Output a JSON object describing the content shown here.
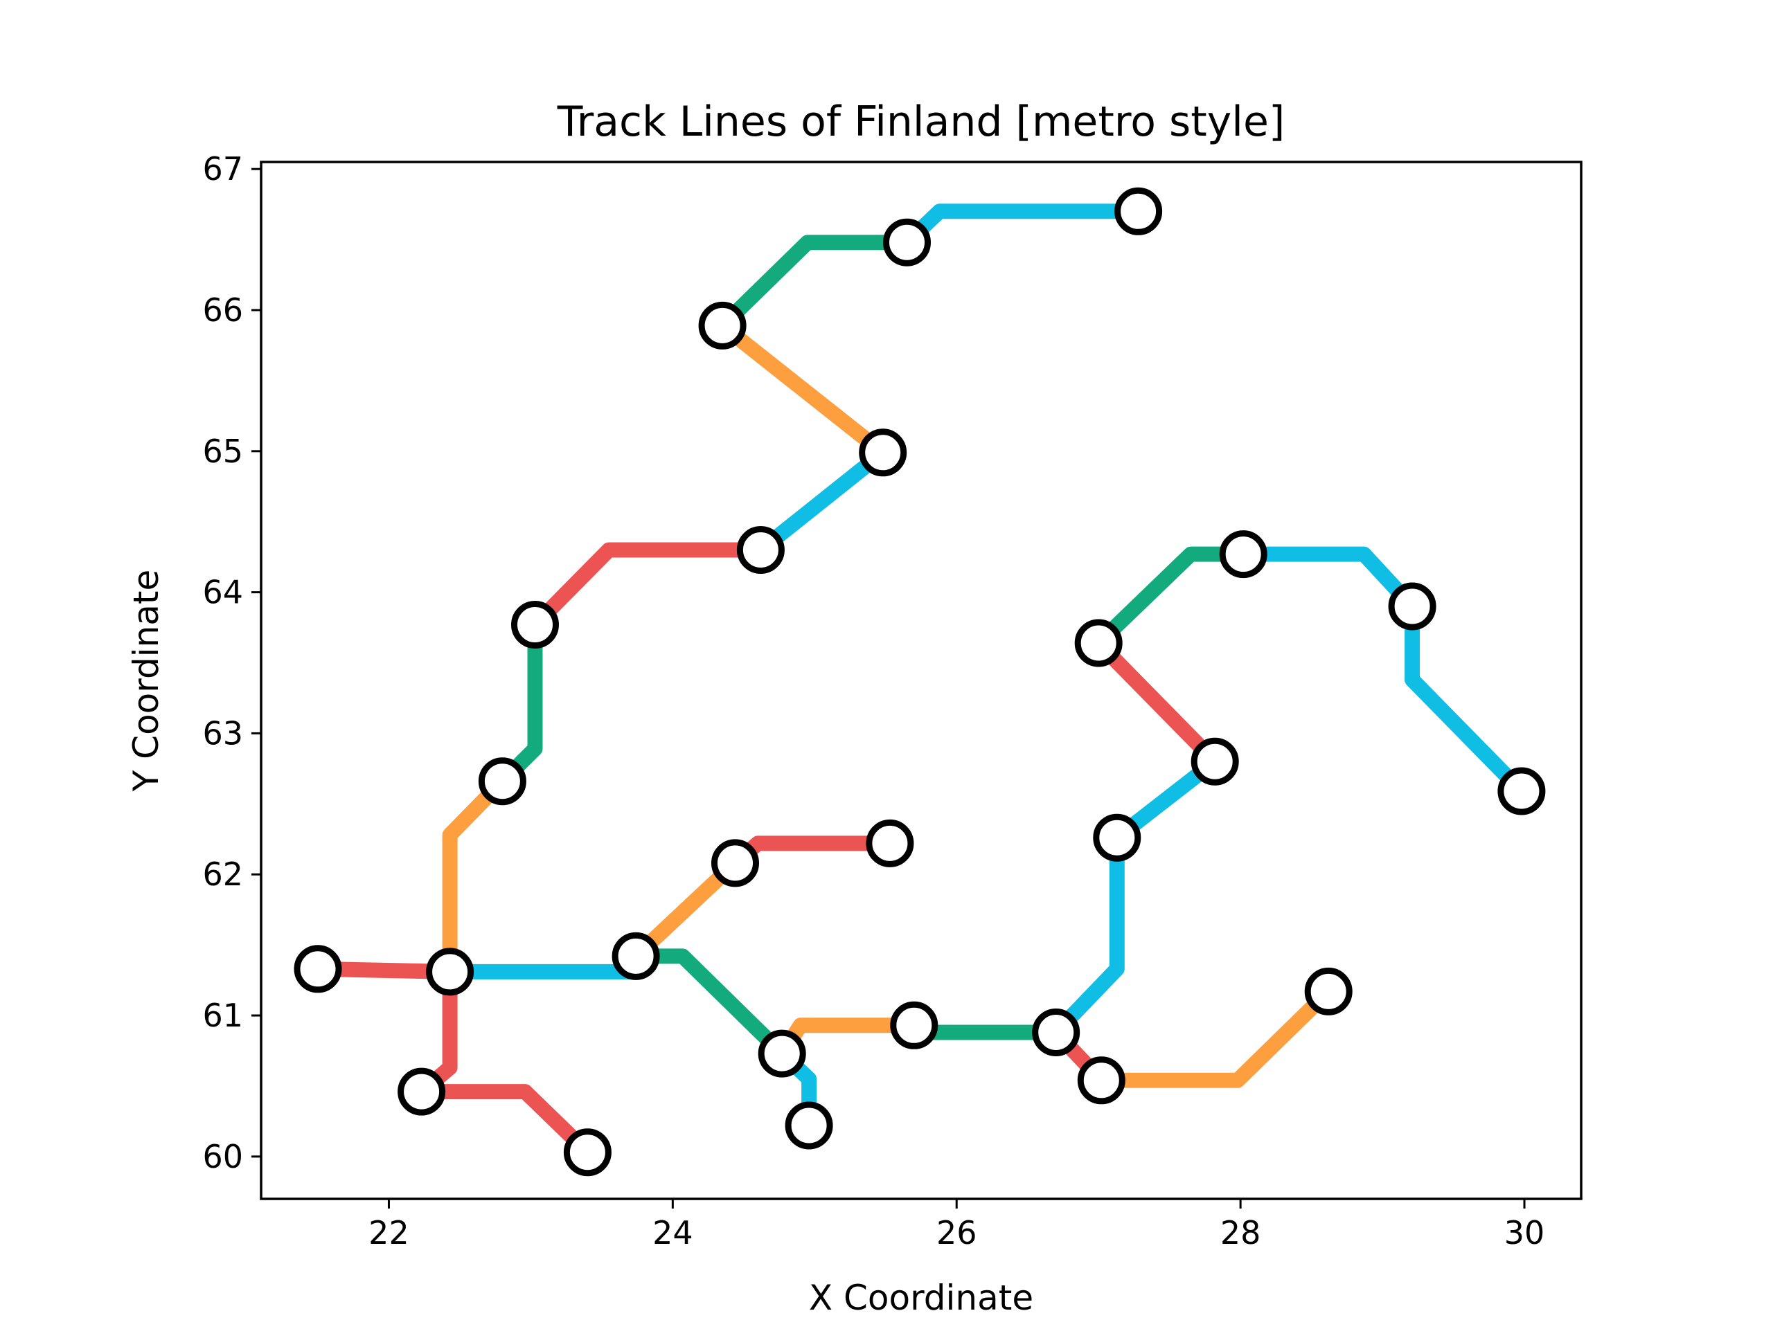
{
  "chart_data": {
    "type": "line",
    "title": "Track Lines of Finland [metro style]",
    "xlabel": "X Coordinate",
    "ylabel": "Y Coordinate",
    "xlim": [
      21.1,
      30.4
    ],
    "ylim": [
      59.7,
      67.05
    ],
    "xticks": [
      22,
      24,
      26,
      28,
      30
    ],
    "yticks": [
      60,
      61,
      62,
      63,
      64,
      65,
      66,
      67
    ],
    "grid": false,
    "legend": "none",
    "colors": {
      "red": "#ec5353",
      "orange": "#fd9e3f",
      "blue": "#10bde5",
      "green": "#13ab7e"
    },
    "stations": [
      {
        "x": 21.5,
        "y": 61.33
      },
      {
        "x": 22.43,
        "y": 61.31
      },
      {
        "x": 22.23,
        "y": 60.46
      },
      {
        "x": 23.4,
        "y": 60.03
      },
      {
        "x": 22.8,
        "y": 62.66
      },
      {
        "x": 23.03,
        "y": 63.77
      },
      {
        "x": 24.62,
        "y": 64.3
      },
      {
        "x": 25.48,
        "y": 64.99
      },
      {
        "x": 24.35,
        "y": 65.89
      },
      {
        "x": 25.65,
        "y": 66.48
      },
      {
        "x": 27.28,
        "y": 66.7
      },
      {
        "x": 23.74,
        "y": 61.42
      },
      {
        "x": 24.44,
        "y": 62.08
      },
      {
        "x": 25.53,
        "y": 62.22
      },
      {
        "x": 24.77,
        "y": 60.73
      },
      {
        "x": 24.96,
        "y": 60.22
      },
      {
        "x": 25.7,
        "y": 60.93
      },
      {
        "x": 26.7,
        "y": 60.88
      },
      {
        "x": 27.02,
        "y": 60.54
      },
      {
        "x": 28.62,
        "y": 61.17
      },
      {
        "x": 27.13,
        "y": 62.26
      },
      {
        "x": 27.82,
        "y": 62.8
      },
      {
        "x": 27.0,
        "y": 63.64
      },
      {
        "x": 28.02,
        "y": 64.27
      },
      {
        "x": 29.21,
        "y": 63.9
      },
      {
        "x": 29.98,
        "y": 62.59
      }
    ],
    "segments": [
      {
        "color": "red",
        "points": [
          [
            21.5,
            61.33
          ],
          [
            22.43,
            61.31
          ]
        ]
      },
      {
        "color": "blue",
        "points": [
          [
            22.43,
            61.31
          ],
          [
            23.74,
            61.31
          ],
          [
            23.74,
            61.42
          ]
        ]
      },
      {
        "color": "red",
        "points": [
          [
            22.43,
            61.31
          ],
          [
            22.43,
            60.63
          ],
          [
            22.23,
            60.46
          ]
        ]
      },
      {
        "color": "red",
        "points": [
          [
            22.23,
            60.46
          ],
          [
            22.96,
            60.46
          ],
          [
            23.4,
            60.03
          ]
        ]
      },
      {
        "color": "orange",
        "points": [
          [
            22.43,
            61.31
          ],
          [
            22.43,
            62.28
          ],
          [
            22.8,
            62.66
          ]
        ]
      },
      {
        "color": "green",
        "points": [
          [
            22.8,
            62.66
          ],
          [
            23.03,
            62.89
          ],
          [
            23.03,
            63.77
          ]
        ]
      },
      {
        "color": "red",
        "points": [
          [
            23.03,
            63.77
          ],
          [
            23.55,
            64.3
          ],
          [
            24.62,
            64.3
          ]
        ]
      },
      {
        "color": "blue",
        "points": [
          [
            24.62,
            64.3
          ],
          [
            25.48,
            64.99
          ]
        ]
      },
      {
        "color": "orange",
        "points": [
          [
            25.48,
            64.99
          ],
          [
            24.35,
            65.89
          ]
        ]
      },
      {
        "color": "green",
        "points": [
          [
            24.35,
            65.89
          ],
          [
            24.95,
            66.48
          ],
          [
            25.65,
            66.48
          ]
        ]
      },
      {
        "color": "blue",
        "points": [
          [
            25.65,
            66.48
          ],
          [
            25.88,
            66.7
          ],
          [
            27.28,
            66.7
          ]
        ]
      },
      {
        "color": "orange",
        "points": [
          [
            23.74,
            61.42
          ],
          [
            24.44,
            62.08
          ]
        ]
      },
      {
        "color": "red",
        "points": [
          [
            24.44,
            62.08
          ],
          [
            24.6,
            62.22
          ],
          [
            25.53,
            62.22
          ]
        ]
      },
      {
        "color": "green",
        "points": [
          [
            23.74,
            61.42
          ],
          [
            24.07,
            61.42
          ],
          [
            24.77,
            60.73
          ]
        ]
      },
      {
        "color": "blue",
        "points": [
          [
            24.77,
            60.73
          ],
          [
            24.96,
            60.55
          ],
          [
            24.96,
            60.22
          ]
        ]
      },
      {
        "color": "orange",
        "points": [
          [
            24.77,
            60.73
          ],
          [
            24.9,
            60.93
          ],
          [
            25.7,
            60.93
          ]
        ]
      },
      {
        "color": "green",
        "points": [
          [
            25.7,
            60.93
          ],
          [
            25.78,
            60.88
          ],
          [
            26.7,
            60.88
          ]
        ]
      },
      {
        "color": "red",
        "points": [
          [
            26.7,
            60.88
          ],
          [
            27.02,
            60.54
          ]
        ]
      },
      {
        "color": "orange",
        "points": [
          [
            27.02,
            60.54
          ],
          [
            27.98,
            60.54
          ],
          [
            28.62,
            61.17
          ]
        ]
      },
      {
        "color": "blue",
        "points": [
          [
            26.7,
            60.88
          ],
          [
            27.13,
            61.33
          ],
          [
            27.13,
            62.26
          ]
        ]
      },
      {
        "color": "blue",
        "points": [
          [
            27.13,
            62.26
          ],
          [
            27.82,
            62.8
          ]
        ]
      },
      {
        "color": "red",
        "points": [
          [
            27.82,
            62.8
          ],
          [
            27.0,
            63.64
          ]
        ]
      },
      {
        "color": "green",
        "points": [
          [
            27.0,
            63.64
          ],
          [
            27.65,
            64.27
          ],
          [
            28.02,
            64.27
          ]
        ]
      },
      {
        "color": "blue",
        "points": [
          [
            28.02,
            64.27
          ],
          [
            28.87,
            64.27
          ],
          [
            29.21,
            63.9
          ],
          [
            29.21,
            63.38
          ],
          [
            29.98,
            62.59
          ]
        ]
      }
    ]
  }
}
